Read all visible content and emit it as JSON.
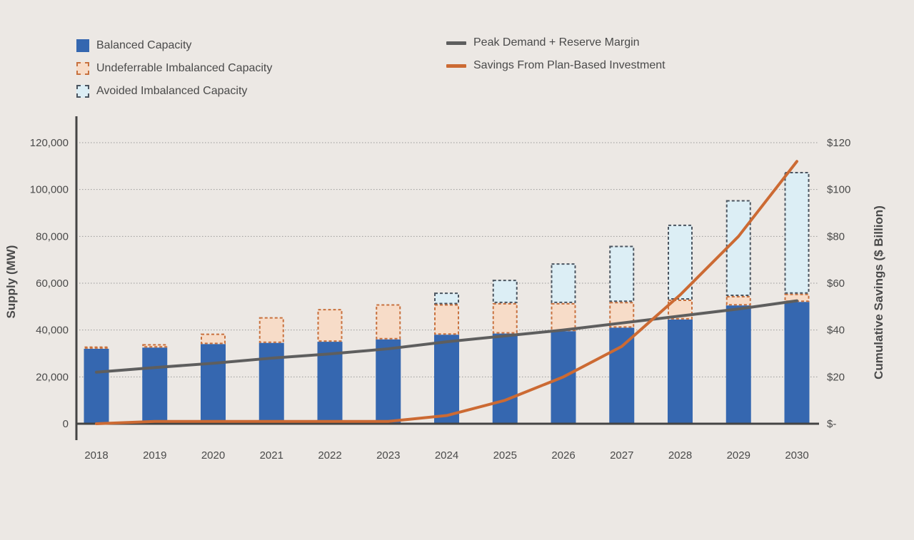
{
  "colors": {
    "balanced": "#3567b0",
    "undeferrable_fill": "#f7dcc8",
    "undeferrable_border": "#c8713e",
    "avoided_fill": "#dceef5",
    "avoided_border": "#4b5560",
    "peak_line": "#5e5e5e",
    "savings_line": "#cc6a33",
    "axis": "#444444",
    "grid": "#999999"
  },
  "legend": {
    "balanced": "Balanced Capacity",
    "undeferrable": "Undeferrable Imbalanced Capacity",
    "avoided": "Avoided Imbalanced Capacity",
    "peak": "Peak Demand + Reserve Margin",
    "savings": "Savings From Plan-Based Investment"
  },
  "chart_data": {
    "type": "bar",
    "categories": [
      "2018",
      "2019",
      "2020",
      "2021",
      "2022",
      "2023",
      "2024",
      "2025",
      "2026",
      "2027",
      "2028",
      "2029",
      "2030"
    ],
    "series": [
      {
        "name": "Balanced Capacity",
        "kind": "stacked-bar",
        "values": [
          32000,
          32500,
          34000,
          34500,
          35000,
          36000,
          38000,
          38500,
          39500,
          41000,
          44500,
          50500,
          52000
        ]
      },
      {
        "name": "Undeferrable Imbalanced Capacity",
        "kind": "stacked-bar",
        "values": [
          1000,
          1500,
          4500,
          11000,
          14000,
          15000,
          13000,
          13000,
          12000,
          11000,
          8500,
          4000,
          3500
        ]
      },
      {
        "name": "Avoided Imbalanced Capacity",
        "kind": "stacked-bar",
        "values": [
          0,
          0,
          0,
          0,
          0,
          0,
          5000,
          10000,
          17000,
          24000,
          32000,
          41000,
          52000
        ]
      },
      {
        "name": "Peak Demand + Reserve Margin",
        "kind": "line",
        "axis": "left",
        "values": [
          22000,
          24000,
          25800,
          28000,
          29800,
          32000,
          35000,
          37500,
          40000,
          43000,
          46000,
          49000,
          52500
        ]
      },
      {
        "name": "Savings From Plan-Based Investment",
        "kind": "line",
        "axis": "right",
        "values": [
          0,
          1,
          1,
          1,
          1,
          1,
          3.5,
          10,
          20,
          33,
          55,
          80,
          112
        ]
      }
    ],
    "y_left": {
      "label": "Supply (MW)",
      "range": [
        0,
        120000
      ],
      "ticks": [
        0,
        20000,
        40000,
        60000,
        80000,
        100000,
        120000
      ],
      "tick_labels": [
        "0",
        "20,000",
        "40,000",
        "60,000",
        "80,000",
        "100,000",
        "120,000"
      ]
    },
    "y_right": {
      "label": "Cumulative Savings ($ Billion)",
      "range": [
        0,
        120
      ],
      "ticks": [
        0,
        20,
        40,
        60,
        80,
        100,
        120
      ],
      "tick_labels": [
        "$-",
        "$20",
        "$40",
        "$60",
        "$80",
        "$100",
        "$120"
      ]
    },
    "grid": "horizontal-dotted",
    "legend_position": "top"
  }
}
